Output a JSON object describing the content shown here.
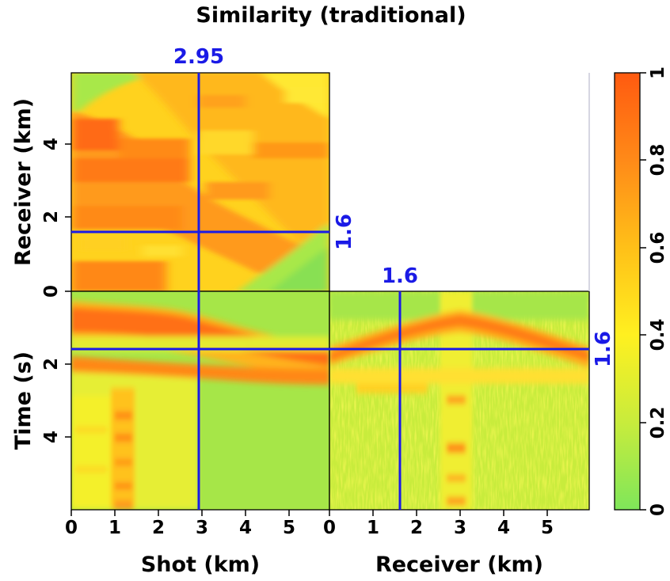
{
  "chart_data": {
    "type": "heatmap",
    "title": "Similarity (traditional)",
    "colormap": {
      "name": "yellow-orange-green",
      "stops": [
        {
          "value": 0.0,
          "color": "#7fe65a"
        },
        {
          "value": 0.2,
          "color": "#c8ec3c"
        },
        {
          "value": 0.4,
          "color": "#fff020"
        },
        {
          "value": 0.6,
          "color": "#ffc018"
        },
        {
          "value": 0.8,
          "color": "#ff8a18"
        },
        {
          "value": 1.0,
          "color": "#ff5a10"
        }
      ]
    },
    "colorbar": {
      "ticks": [
        "0",
        "0.2",
        "0.4",
        "0.6",
        "0.8",
        "1"
      ],
      "range": [
        0,
        1
      ]
    },
    "panels": {
      "top_left": {
        "name": "shot-receiver slice",
        "x_range_km": [
          0,
          6
        ],
        "y_label": "Receiver (km)",
        "y_ticks": [
          "0",
          "2",
          "4"
        ],
        "y_range_km": [
          0,
          6
        ]
      },
      "bottom_left": {
        "name": "shot-time slice",
        "x_label": "Shot (km)",
        "x_ticks": [
          "0",
          "1",
          "2",
          "3",
          "4",
          "5"
        ],
        "y_label": "Time (s)",
        "y_ticks": [
          "2",
          "4"
        ],
        "y_range_s": [
          0,
          6
        ]
      },
      "bottom_right": {
        "name": "receiver-time slice",
        "x_label": "Receiver (km)",
        "x_ticks": [
          "0",
          "1",
          "2",
          "3",
          "4",
          "5"
        ]
      },
      "shared_zero_tick": "0"
    },
    "crosshair": {
      "color": "#1a1ae6",
      "shot_km": 2.95,
      "receiver_km": 1.6,
      "time_s": 1.6,
      "labels": {
        "shot": "2.95",
        "receiver_top": "1.6",
        "receiver_side": "1.6",
        "time": "1.6"
      }
    }
  }
}
